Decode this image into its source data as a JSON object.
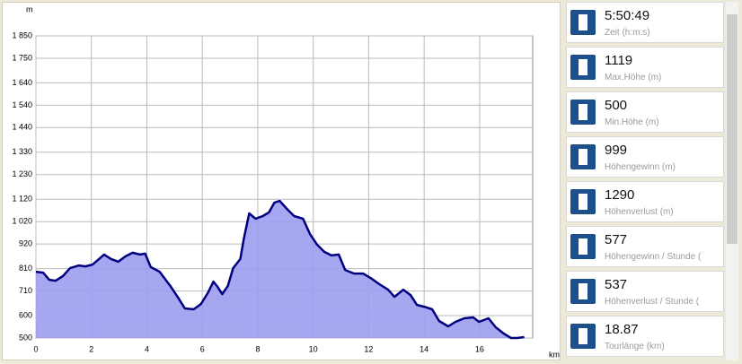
{
  "chart_data": {
    "type": "area",
    "y_label": "m",
    "x_label": "km",
    "x": [
      0,
      0.26,
      0.48,
      0.71,
      0.97,
      1.23,
      1.55,
      1.78,
      2.04,
      2.2,
      2.46,
      2.71,
      2.97,
      3.23,
      3.49,
      3.75,
      3.94,
      4.14,
      4.46,
      4.85,
      5.11,
      5.37,
      5.69,
      5.95,
      6.21,
      6.4,
      6.53,
      6.72,
      6.92,
      7.11,
      7.37,
      7.5,
      7.69,
      7.92,
      8.18,
      8.4,
      8.6,
      8.79,
      9.05,
      9.31,
      9.63,
      9.88,
      10.14,
      10.4,
      10.66,
      10.92,
      11.15,
      11.47,
      11.8,
      12.12,
      12.44,
      12.7,
      12.93,
      13.25,
      13.51,
      13.74,
      14.0,
      14.29,
      14.54,
      14.87,
      15.13,
      15.45,
      15.77,
      15.98,
      16.32,
      16.58,
      16.87,
      17.13,
      17.36,
      17.61
    ],
    "series": [
      {
        "color": "#000080",
        "fill": "#9c9cf0",
        "values": [
          796,
          792,
          760,
          756,
          776,
          812,
          824,
          820,
          828,
          845,
          873,
          853,
          841,
          865,
          881,
          873,
          877,
          817,
          796,
          732,
          684,
          632,
          628,
          652,
          704,
          752,
          732,
          696,
          732,
          812,
          853,
          945,
          1057,
          1033,
          1045,
          1061,
          1105,
          1113,
          1077,
          1045,
          1033,
          965,
          917,
          885,
          869,
          873,
          804,
          788,
          788,
          764,
          736,
          716,
          684,
          716,
          692,
          648,
          640,
          628,
          576,
          552,
          572,
          588,
          592,
          572,
          588,
          548,
          520,
          500,
          500,
          504
        ]
      }
    ],
    "xlim": [
      0,
      17.85
    ],
    "ylim": [
      500,
      1850
    ],
    "xticks": [
      0,
      2,
      4,
      6,
      8,
      10,
      12,
      14,
      16
    ],
    "yticks": [
      500,
      600,
      710,
      810,
      920,
      {
        "value": 1020,
        "label": "1 020"
      },
      {
        "value": 1120,
        "label": "1 120"
      },
      {
        "value": 1230,
        "label": "1 230"
      },
      {
        "value": 1330,
        "label": "1 330"
      },
      {
        "value": 1440,
        "label": "1 440"
      },
      {
        "value": 1540,
        "label": "1 540"
      },
      {
        "value": 1640,
        "label": "1 640"
      },
      {
        "value": 1750,
        "label": "1 750"
      },
      {
        "value": 1850,
        "label": "1 850"
      }
    ],
    "grid": true
  },
  "stats": [
    {
      "value": "5:50:49",
      "label": "Zeit (h:m:s)"
    },
    {
      "value": 1119,
      "label": "Max.Höhe (m)"
    },
    {
      "value": 500,
      "label": "Min.Höhe (m)"
    },
    {
      "value": 999,
      "label": "Höhengewinn (m)"
    },
    {
      "value": 1290,
      "label": "Höhenverlust (m)"
    },
    {
      "value": 577,
      "label": "Höhengewinn / Stunde ("
    },
    {
      "value": 537,
      "label": "Höhenverlust / Stunde ("
    },
    {
      "value": 18.87,
      "label": "Tourlänge (km)"
    }
  ]
}
